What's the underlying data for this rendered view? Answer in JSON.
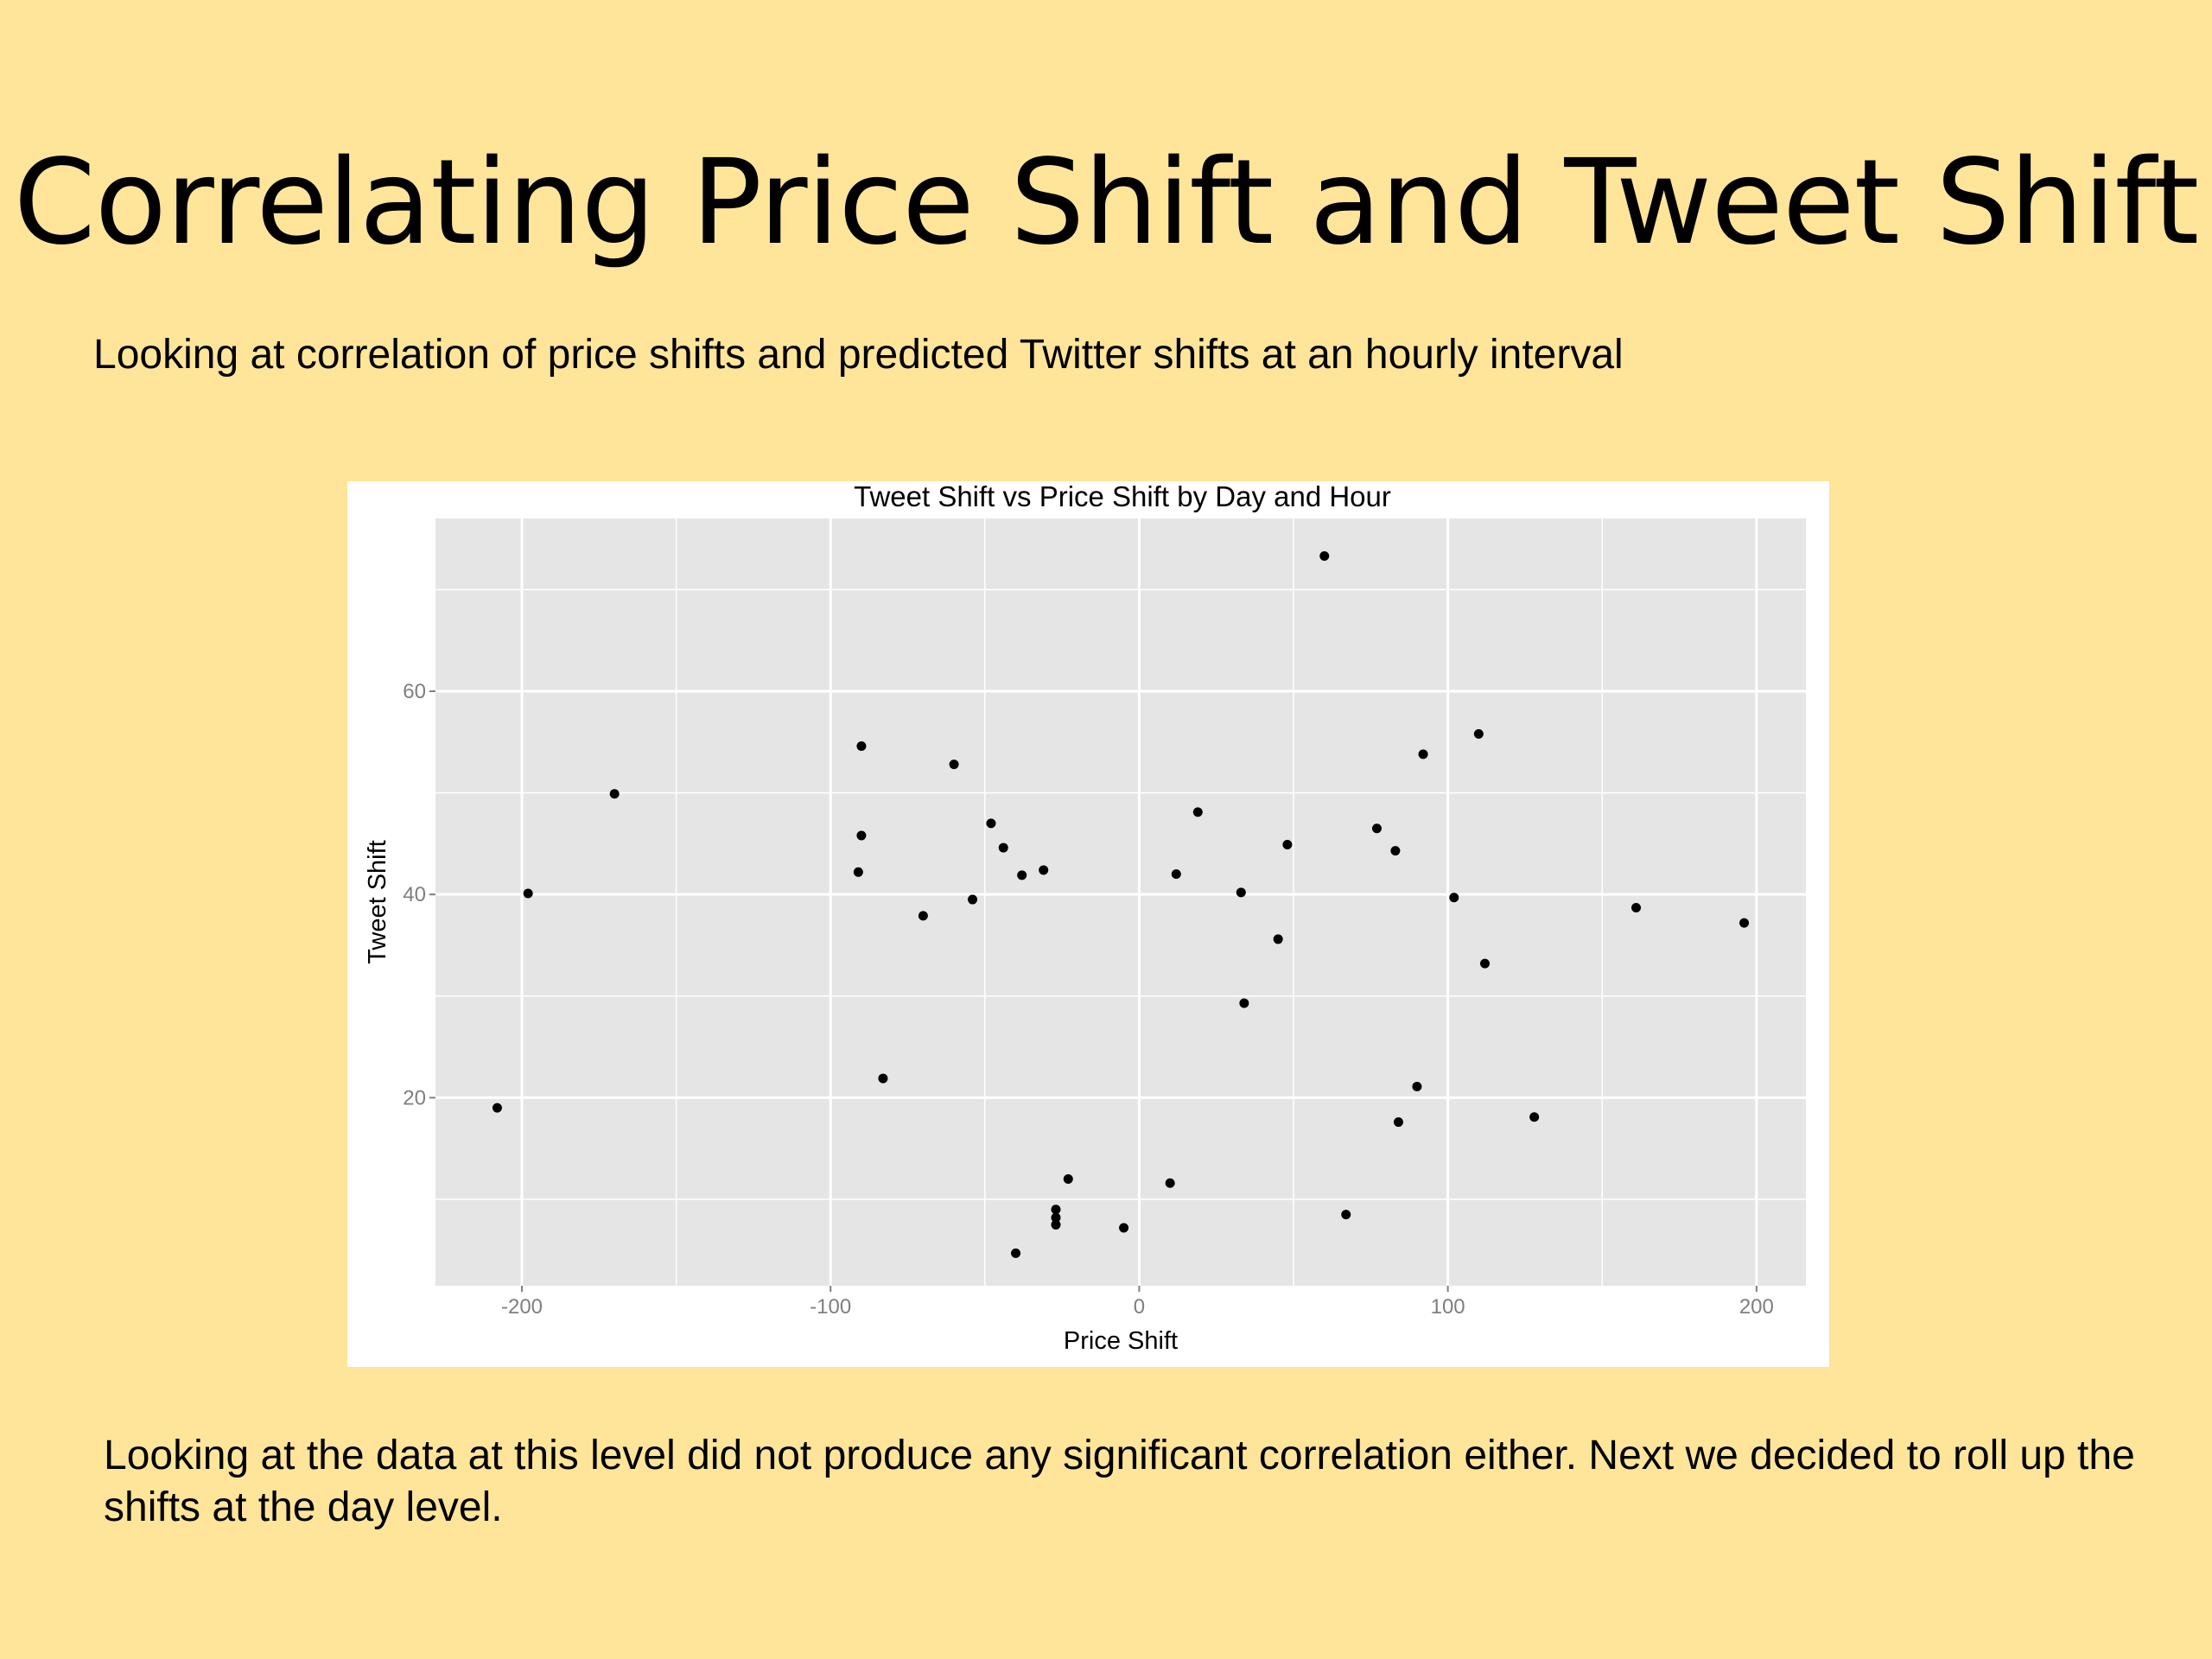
{
  "slide": {
    "title": "Correlating Price Shift and Tweet Shift",
    "subtitle": "Looking at correlation of price shifts and predicted Twitter shifts at an hourly interval",
    "conclusion": "Looking at the data at this level did not produce any significant correlation either. Next we decided to roll up the shifts at the day level.",
    "background_color": "#FFE59A"
  },
  "chart_data": {
    "type": "scatter",
    "title": "Tweet Shift vs Price Shift by Day and Hour",
    "xlabel": "Price Shift",
    "ylabel": "Tweet Shift",
    "xlim": [
      -228,
      216
    ],
    "ylim": [
      1.5,
      77
    ],
    "x_ticks": [
      -200,
      -100,
      0,
      100,
      200
    ],
    "x_tick_labels": [
      "-200",
      "-100",
      "0",
      "100",
      "200"
    ],
    "y_ticks": [
      20,
      40,
      60
    ],
    "y_tick_labels": [
      "20",
      "40",
      "60"
    ],
    "grid": true,
    "panel_color": "#E5E5E5",
    "grid_color": "#FFFFFF",
    "point_color": "#000000",
    "points": [
      {
        "x": -208,
        "y": 19.0
      },
      {
        "x": -198,
        "y": 40.1
      },
      {
        "x": -170,
        "y": 49.9
      },
      {
        "x": -90,
        "y": 54.6
      },
      {
        "x": -90,
        "y": 45.8
      },
      {
        "x": -91,
        "y": 42.2
      },
      {
        "x": -83,
        "y": 21.9
      },
      {
        "x": -70,
        "y": 37.9
      },
      {
        "x": -60,
        "y": 52.8
      },
      {
        "x": -54,
        "y": 39.5
      },
      {
        "x": -48,
        "y": 47.0
      },
      {
        "x": -44,
        "y": 44.6
      },
      {
        "x": -38,
        "y": 41.9
      },
      {
        "x": -31,
        "y": 42.4
      },
      {
        "x": -40,
        "y": 4.7
      },
      {
        "x": -27,
        "y": 9.0
      },
      {
        "x": -27,
        "y": 8.2
      },
      {
        "x": -27,
        "y": 7.5
      },
      {
        "x": -23,
        "y": 12.0
      },
      {
        "x": -5,
        "y": 7.2
      },
      {
        "x": 10,
        "y": 11.6
      },
      {
        "x": 12,
        "y": 42.0
      },
      {
        "x": 19,
        "y": 48.1
      },
      {
        "x": 33,
        "y": 40.2
      },
      {
        "x": 34,
        "y": 29.3
      },
      {
        "x": 45,
        "y": 35.6
      },
      {
        "x": 48,
        "y": 44.9
      },
      {
        "x": 60,
        "y": 73.3
      },
      {
        "x": 67,
        "y": 8.5
      },
      {
        "x": 77,
        "y": 46.5
      },
      {
        "x": 83,
        "y": 44.3
      },
      {
        "x": 84,
        "y": 17.6
      },
      {
        "x": 90,
        "y": 21.1
      },
      {
        "x": 92,
        "y": 53.8
      },
      {
        "x": 102,
        "y": 39.7
      },
      {
        "x": 110,
        "y": 55.8
      },
      {
        "x": 112,
        "y": 33.2
      },
      {
        "x": 128,
        "y": 18.1
      },
      {
        "x": 161,
        "y": 38.7
      },
      {
        "x": 196,
        "y": 37.2
      }
    ]
  }
}
